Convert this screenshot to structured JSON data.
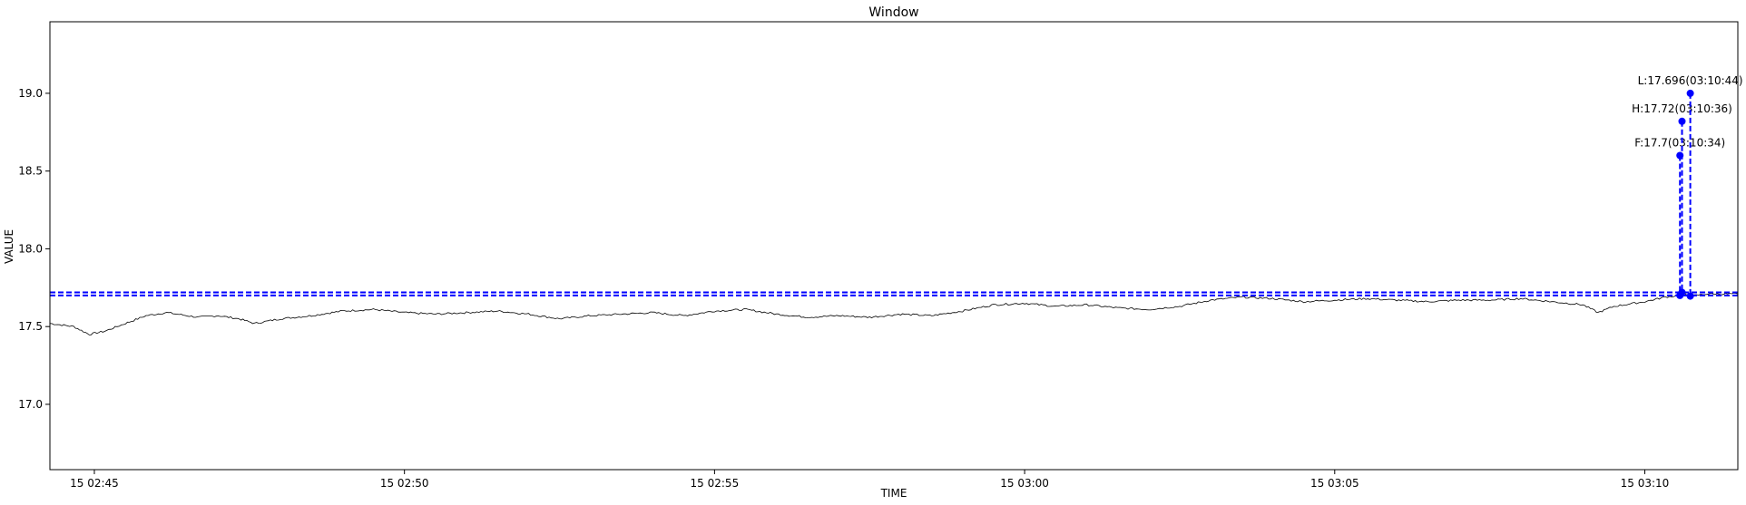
{
  "chart_data": {
    "type": "line",
    "title": "Window",
    "xlabel": "TIME",
    "ylabel": "VALUE",
    "x_ticks": [
      "15 02:45",
      "15 02:50",
      "15 02:55",
      "15 03:00",
      "15 03:05",
      "15 03:10"
    ],
    "y_ticks": [
      "17.0",
      "17.5",
      "18.0",
      "18.5",
      "19.0"
    ],
    "xlim": [
      "15 02:44:17",
      "15 03:11:30"
    ],
    "ylim": [
      16.58,
      19.46
    ],
    "grid": false,
    "series": [
      {
        "color": "#000000",
        "points": [
          [
            "15 02:44:17",
            17.52
          ],
          [
            "15 02:44:40",
            17.5
          ],
          [
            "15 02:44:55",
            17.45
          ],
          [
            "15 02:45:10",
            17.47
          ],
          [
            "15 02:45:30",
            17.52
          ],
          [
            "15 02:45:50",
            17.57
          ],
          [
            "15 02:46:10",
            17.59
          ],
          [
            "15 02:46:40",
            17.56
          ],
          [
            "15 02:47:00",
            17.57
          ],
          [
            "15 02:47:20",
            17.55
          ],
          [
            "15 02:47:35",
            17.52
          ],
          [
            "15 02:48:00",
            17.55
          ],
          [
            "15 02:48:30",
            17.57
          ],
          [
            "15 02:49:00",
            17.6
          ],
          [
            "15 02:49:30",
            17.61
          ],
          [
            "15 02:50:00",
            17.59
          ],
          [
            "15 02:50:30",
            17.58
          ],
          [
            "15 02:51:00",
            17.59
          ],
          [
            "15 02:51:30",
            17.6
          ],
          [
            "15 02:52:00",
            17.58
          ],
          [
            "15 02:52:30",
            17.55
          ],
          [
            "15 02:53:00",
            17.57
          ],
          [
            "15 02:53:30",
            17.58
          ],
          [
            "15 02:54:00",
            17.59
          ],
          [
            "15 02:54:30",
            17.57
          ],
          [
            "15 02:55:00",
            17.6
          ],
          [
            "15 02:55:30",
            17.61
          ],
          [
            "15 02:56:00",
            17.58
          ],
          [
            "15 02:56:30",
            17.56
          ],
          [
            "15 02:57:00",
            17.57
          ],
          [
            "15 02:57:30",
            17.56
          ],
          [
            "15 02:58:00",
            17.58
          ],
          [
            "15 02:58:30",
            17.57
          ],
          [
            "15 02:59:00",
            17.6
          ],
          [
            "15 02:59:30",
            17.64
          ],
          [
            "15 03:00:00",
            17.65
          ],
          [
            "15 03:00:30",
            17.63
          ],
          [
            "15 03:01:00",
            17.64
          ],
          [
            "15 03:01:30",
            17.62
          ],
          [
            "15 03:02:00",
            17.61
          ],
          [
            "15 03:02:30",
            17.63
          ],
          [
            "15 03:03:00",
            17.67
          ],
          [
            "15 03:03:30",
            17.69
          ],
          [
            "15 03:04:00",
            17.68
          ],
          [
            "15 03:04:30",
            17.66
          ],
          [
            "15 03:05:00",
            17.67
          ],
          [
            "15 03:05:30",
            17.68
          ],
          [
            "15 03:06:00",
            17.67
          ],
          [
            "15 03:06:30",
            17.66
          ],
          [
            "15 03:07:00",
            17.67
          ],
          [
            "15 03:07:30",
            17.67
          ],
          [
            "15 03:08:00",
            17.68
          ],
          [
            "15 03:08:30",
            17.66
          ],
          [
            "15 03:09:00",
            17.64
          ],
          [
            "15 03:09:15",
            17.59
          ],
          [
            "15 03:09:30",
            17.63
          ],
          [
            "15 03:10:00",
            17.66
          ],
          [
            "15 03:10:20",
            17.69
          ],
          [
            "15 03:10:34",
            17.7
          ],
          [
            "15 03:10:36",
            17.72
          ],
          [
            "15 03:10:44",
            17.696
          ],
          [
            "15 03:11:00",
            17.71
          ],
          [
            "15 03:11:30",
            17.71
          ]
        ]
      }
    ],
    "hlines": [
      {
        "y": 17.72,
        "color": "#0000ff",
        "style": "dashed"
      },
      {
        "y": 17.7,
        "color": "#0000ff",
        "style": "dashed"
      }
    ],
    "markers": [
      {
        "label": "F:17.7(03:10:34)",
        "x": "15 03:10:34",
        "y_marker": 18.6,
        "y_base": 17.7,
        "color": "#0000ff"
      },
      {
        "label": "H:17.72(03:10:36)",
        "x": "15 03:10:36",
        "y_marker": 18.82,
        "y_base": 17.72,
        "color": "#0000ff"
      },
      {
        "label": "L:17.696(03:10:44)",
        "x": "15 03:10:44",
        "y_marker": 19.0,
        "y_base": 17.696,
        "color": "#0000ff"
      }
    ]
  }
}
